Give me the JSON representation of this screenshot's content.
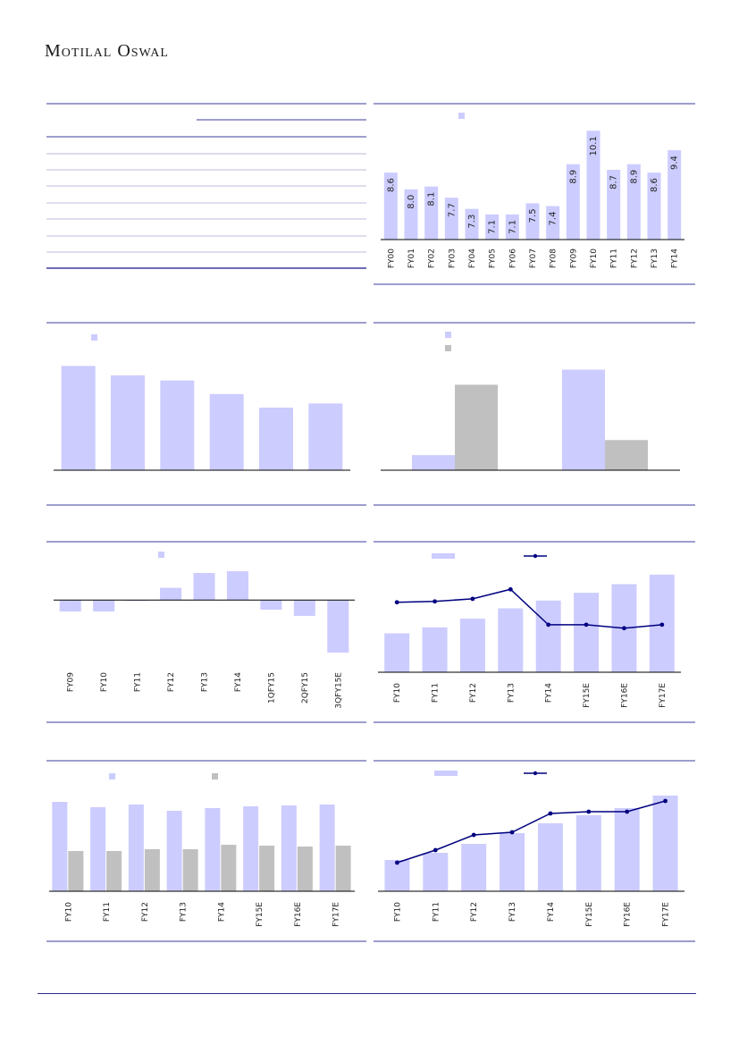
{
  "header": {
    "brand": "Motilal Oswal"
  },
  "colors": {
    "bar_primary": "#ccccff",
    "bar_secondary": "#c0c0c0",
    "line": "#000080",
    "rule": "#3b3b9e"
  },
  "chart_data": [
    {
      "id": "chart1",
      "type": "bar",
      "categories": [
        "FY00",
        "FY01",
        "FY02",
        "FY03",
        "FY04",
        "FY05",
        "FY06",
        "FY07",
        "FY08",
        "FY09",
        "FY10",
        "FY11",
        "FY12",
        "FY13",
        "FY14"
      ],
      "values": [
        8.6,
        8.0,
        8.1,
        7.7,
        7.3,
        7.1,
        7.1,
        7.5,
        7.4,
        8.9,
        10.1,
        8.7,
        8.9,
        8.6,
        9.4
      ],
      "ylim": [
        6.2,
        10.3
      ]
    },
    {
      "id": "chart2",
      "type": "bar",
      "values": [
        100,
        91,
        86,
        73,
        60,
        64
      ],
      "ylim": [
        0,
        108
      ]
    },
    {
      "id": "chart3",
      "type": "bar",
      "series": [
        {
          "values": [
            15,
            100
          ]
        },
        {
          "values": [
            85,
            30
          ]
        }
      ],
      "ylim": [
        0,
        112
      ]
    },
    {
      "id": "chart4",
      "type": "bar",
      "categories": [
        "FY09",
        "FY10",
        "FY11",
        "FY12",
        "FY13",
        "FY14",
        "1QFY15",
        "2QFY15",
        "3QFY15E"
      ],
      "values": [
        -1.3,
        -1.3,
        -0.1,
        1.4,
        3.1,
        3.3,
        -1.1,
        -1.8,
        -6.0
      ],
      "ylim": [
        -6.5,
        3.6
      ]
    },
    {
      "id": "chart5",
      "type": "bar",
      "categories": [
        "FY10",
        "FY11",
        "FY12",
        "FY13",
        "FY14",
        "FY15E",
        "FY16E",
        "FY17E"
      ],
      "series": [
        {
          "type": "bar",
          "values": [
            45,
            52,
            62,
            74,
            83,
            92,
            102,
            113
          ]
        },
        {
          "type": "line",
          "values": [
            81,
            82,
            85,
            96,
            55,
            55,
            51,
            55
          ]
        }
      ],
      "ylim": [
        0,
        118
      ]
    },
    {
      "id": "chart6",
      "type": "bar",
      "categories": [
        "FY10",
        "FY11",
        "FY12",
        "FY13",
        "FY14",
        "FY15E",
        "FY16E",
        "FY17E"
      ],
      "series": [
        {
          "values": [
            100,
            94,
            97,
            90,
            93,
            95,
            96,
            97
          ]
        },
        {
          "values": [
            45,
            45,
            47,
            47,
            52,
            51,
            50,
            51
          ]
        }
      ],
      "ylim": [
        0,
        105
      ]
    },
    {
      "id": "chart7",
      "type": "bar",
      "categories": [
        "FY10",
        "FY11",
        "FY12",
        "FY13",
        "FY14",
        "FY15E",
        "FY16E",
        "FY17E"
      ],
      "series": [
        {
          "type": "bar",
          "values": [
            35,
            43,
            53,
            65,
            76,
            85,
            93,
            107
          ]
        },
        {
          "type": "line",
          "values": [
            32,
            46,
            63,
            66,
            87,
            89,
            89,
            101
          ]
        }
      ],
      "ylim": [
        0,
        112
      ]
    }
  ]
}
